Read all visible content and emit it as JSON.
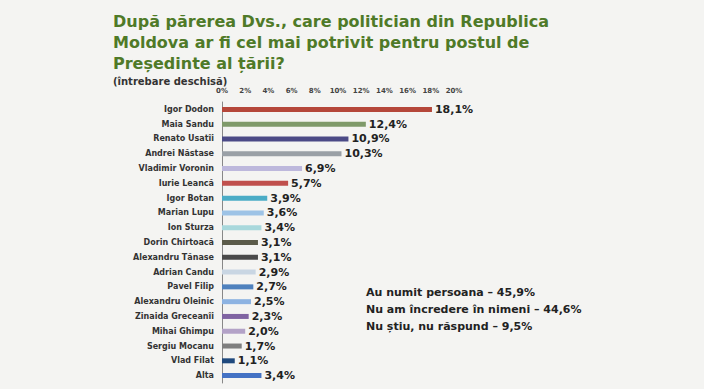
{
  "chart_data": {
    "type": "bar",
    "orientation": "horizontal",
    "title": "După părerea Dvs., care politician din Republica Moldova ar fi cel mai potrivit pentru postul de Președinte al țării?",
    "subtitle": "(întrebare deschisă)",
    "categories": [
      "Igor Dodon",
      "Maia Sandu",
      "Renato Usatîi",
      "Andrei Năstase",
      "Vladimir Voronin",
      "Iurie Leancă",
      "Igor Botan",
      "Marian Lupu",
      "Ion Sturza",
      "Dorin Chirtoacă",
      "Alexandru Tănase",
      "Adrian Candu",
      "Pavel Filip",
      "Alexandru Oleinic",
      "Zinaida Greceanîi",
      "Mihai Ghimpu",
      "Sergiu Mocanu",
      "Vlad Filat",
      "Alta"
    ],
    "values": [
      18.1,
      12.4,
      10.9,
      10.3,
      6.9,
      5.7,
      3.9,
      3.6,
      3.4,
      3.1,
      3.1,
      2.9,
      2.7,
      2.5,
      2.3,
      2.0,
      1.7,
      1.1,
      3.4
    ],
    "value_labels": [
      "18,1%",
      "12,4%",
      "10,9%",
      "10,3%",
      "6,9%",
      "5,7%",
      "3,9%",
      "3,6%",
      "3,4%",
      "3,1%",
      "3,1%",
      "2,9%",
      "2,7%",
      "2,5%",
      "2,3%",
      "2,0%",
      "1,7%",
      "1,1%",
      "3,4%"
    ],
    "colors": [
      "#b5473a",
      "#7f9a6a",
      "#4b4a86",
      "#9aa0a6",
      "#bdb8dc",
      "#c0504d",
      "#4bacc6",
      "#9dc3e6",
      "#a8d8dc",
      "#5b5b4a",
      "#4a4a4a",
      "#c9d6e3",
      "#4f81bd",
      "#8db3e2",
      "#8064a2",
      "#b3a2c7",
      "#7f7f7f",
      "#1f497d",
      "#4472c4"
    ],
    "xlim": [
      0,
      20
    ],
    "xticks": [
      {
        "value": 0,
        "label": "0%"
      },
      {
        "value": 2,
        "label": "2%"
      },
      {
        "value": 4,
        "label": "4%"
      },
      {
        "value": 6,
        "label": "6%"
      },
      {
        "value": 8,
        "label": "8%"
      },
      {
        "value": 10,
        "label": "10%"
      },
      {
        "value": 12,
        "label": "12%"
      },
      {
        "value": 14,
        "label": "14%"
      },
      {
        "value": 16,
        "label": "16%"
      },
      {
        "value": 18,
        "label": "18%"
      },
      {
        "value": 20,
        "label": "20%"
      }
    ],
    "grid": false,
    "data_labels": true,
    "annotations": [
      "Au numit persoana – 45,9%",
      "Nu am încredere în nimeni – 44,6%",
      "Nu știu, nu răspund – 9,5%"
    ]
  }
}
